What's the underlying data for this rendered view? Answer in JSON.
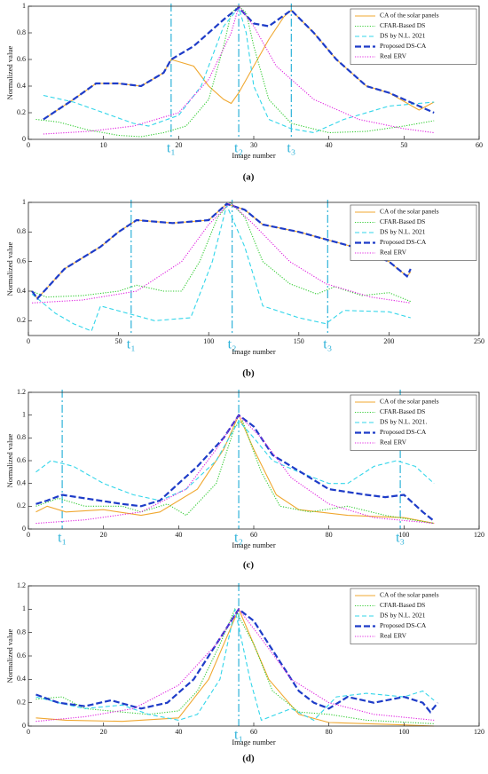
{
  "chart_data": [
    {
      "type": "line",
      "caption": "(a)",
      "xlabel": "Image number",
      "ylabel": "Normalized value",
      "xlim": [
        0,
        60
      ],
      "xticks": [
        0,
        10,
        20,
        30,
        40,
        50,
        60
      ],
      "ylim": [
        0,
        1
      ],
      "yticks": [
        0,
        0.2,
        0.4,
        0.6,
        0.8,
        1
      ],
      "vlines": [
        {
          "x": 19,
          "label": "t₁"
        },
        {
          "x": 28,
          "label": "t₂"
        },
        {
          "x": 35,
          "label": "t₃"
        }
      ],
      "series": [
        {
          "name": "CA of the solar panels",
          "color": "#f0a830",
          "dash": "solid",
          "x": [
            2,
            6,
            9,
            12,
            15,
            18,
            19,
            22,
            24,
            26,
            27,
            28,
            30,
            32,
            34,
            35,
            38,
            41,
            45,
            48,
            52,
            54
          ],
          "values": [
            0.15,
            0.3,
            0.42,
            0.42,
            0.4,
            0.5,
            0.6,
            0.55,
            0.4,
            0.3,
            0.27,
            0.35,
            0.55,
            0.75,
            0.92,
            0.97,
            0.8,
            0.6,
            0.4,
            0.35,
            0.22,
            0.28
          ]
        },
        {
          "name": "CFAR-Based DS",
          "color": "#33cc33",
          "dash": "dot",
          "x": [
            1,
            4,
            8,
            12,
            15,
            18,
            21,
            24,
            26,
            27,
            28,
            29,
            30,
            32,
            35,
            40,
            45,
            50,
            54
          ],
          "values": [
            0.15,
            0.13,
            0.07,
            0.03,
            0.02,
            0.05,
            0.1,
            0.3,
            0.7,
            0.95,
            1,
            0.95,
            0.7,
            0.3,
            0.12,
            0.05,
            0.06,
            0.1,
            0.14
          ]
        },
        {
          "name": "DS by N.L. 2021",
          "color": "#33d6ea",
          "dash": "dash",
          "x": [
            2,
            6,
            10,
            14,
            16,
            20,
            23,
            26,
            28,
            29,
            30,
            32,
            35,
            38,
            42,
            48,
            54
          ],
          "values": [
            0.33,
            0.28,
            0.2,
            0.12,
            0.1,
            0.18,
            0.4,
            0.85,
            0.99,
            0.8,
            0.4,
            0.15,
            0.08,
            0.05,
            0.15,
            0.25,
            0.28
          ]
        },
        {
          "name": "Proposed DS-CA",
          "color": "#1e3cc8",
          "dash": "bold",
          "x": [
            2,
            6,
            9,
            12,
            15,
            18,
            19,
            22,
            26,
            28,
            30,
            32,
            35,
            38,
            41,
            45,
            48,
            52,
            54
          ],
          "values": [
            0.15,
            0.3,
            0.42,
            0.42,
            0.4,
            0.5,
            0.6,
            0.7,
            0.9,
            0.99,
            0.87,
            0.85,
            0.97,
            0.8,
            0.6,
            0.4,
            0.35,
            0.25,
            0.2
          ]
        },
        {
          "name": "Real ERV",
          "color": "#e020e0",
          "dash": "dot",
          "x": [
            2,
            8,
            14,
            20,
            24,
            27,
            28,
            30,
            33,
            38,
            44,
            50,
            54
          ],
          "values": [
            0.04,
            0.06,
            0.1,
            0.2,
            0.45,
            0.8,
            1,
            0.85,
            0.55,
            0.3,
            0.15,
            0.08,
            0.05
          ]
        }
      ]
    },
    {
      "type": "line",
      "caption": "(b)",
      "xlabel": "Image number",
      "ylabel": "Normalized value",
      "xlim": [
        0,
        250
      ],
      "xticks": [
        0,
        50,
        100,
        150,
        200,
        250
      ],
      "ylim": [
        0.1,
        1
      ],
      "yticks": [
        0.2,
        0.4,
        0.6,
        0.8,
        1
      ],
      "vlines": [
        {
          "x": 57,
          "label": "t₁"
        },
        {
          "x": 113,
          "label": "t₂"
        },
        {
          "x": 166,
          "label": "t₃"
        }
      ],
      "series": [
        {
          "name": "CA of the solar panels",
          "color": "#f0a830",
          "dash": "solid",
          "x": [
            2,
            5,
            20,
            40,
            50,
            60,
            80,
            100,
            110,
            120,
            130,
            150,
            165,
            180,
            200,
            210,
            212
          ],
          "values": [
            0.4,
            0.35,
            0.55,
            0.7,
            0.8,
            0.88,
            0.86,
            0.88,
            0.99,
            0.95,
            0.85,
            0.8,
            0.75,
            0.7,
            0.6,
            0.5,
            0.53
          ]
        },
        {
          "name": "CFAR-Based DS",
          "color": "#33cc33",
          "dash": "dot",
          "x": [
            2,
            10,
            30,
            50,
            60,
            75,
            85,
            95,
            105,
            112,
            120,
            130,
            145,
            160,
            170,
            185,
            200,
            212
          ],
          "values": [
            0.4,
            0.36,
            0.37,
            0.4,
            0.44,
            0.4,
            0.4,
            0.6,
            0.9,
            1,
            0.9,
            0.6,
            0.45,
            0.38,
            0.43,
            0.37,
            0.39,
            0.33
          ]
        },
        {
          "name": "DS by N.L. 2021",
          "color": "#33d6ea",
          "dash": "dash",
          "x": [
            2,
            15,
            25,
            35,
            40,
            55,
            70,
            90,
            102,
            110,
            120,
            130,
            150,
            165,
            175,
            200,
            212
          ],
          "values": [
            0.38,
            0.25,
            0.18,
            0.13,
            0.3,
            0.25,
            0.2,
            0.22,
            0.6,
            0.98,
            0.7,
            0.3,
            0.22,
            0.18,
            0.27,
            0.26,
            0.22
          ]
        },
        {
          "name": "Proposed DS-CA",
          "color": "#1e3cc8",
          "dash": "bold",
          "x": [
            2,
            5,
            20,
            40,
            50,
            60,
            80,
            100,
            110,
            120,
            130,
            150,
            165,
            180,
            200,
            210,
            212
          ],
          "values": [
            0.4,
            0.35,
            0.55,
            0.7,
            0.8,
            0.88,
            0.86,
            0.88,
            0.99,
            0.95,
            0.85,
            0.8,
            0.75,
            0.7,
            0.6,
            0.5,
            0.55
          ]
        },
        {
          "name": "Real ERV",
          "color": "#e020e0",
          "dash": "dot",
          "x": [
            2,
            30,
            60,
            85,
            100,
            112,
            125,
            145,
            165,
            190,
            212
          ],
          "values": [
            0.32,
            0.34,
            0.4,
            0.6,
            0.85,
            1,
            0.85,
            0.6,
            0.45,
            0.36,
            0.32
          ]
        }
      ]
    },
    {
      "type": "line",
      "caption": "(c)",
      "xlabel": "Image number",
      "ylabel": "Normalized value",
      "xlim": [
        0,
        120
      ],
      "xticks": [
        0,
        20,
        40,
        60,
        80,
        100,
        120
      ],
      "ylim": [
        0,
        1.2
      ],
      "yticks": [
        0,
        0.2,
        0.4,
        0.6,
        0.8,
        1,
        1.2
      ],
      "vlines": [
        {
          "x": 9,
          "label": "t₁"
        },
        {
          "x": 56,
          "label": "t₂"
        },
        {
          "x": 99,
          "label": "t₃"
        }
      ],
      "series": [
        {
          "name": "CA of the solar panels",
          "color": "#f0a830",
          "dash": "solid",
          "x": [
            2,
            5,
            10,
            20,
            30,
            35,
            45,
            52,
            56,
            60,
            66,
            72,
            85,
            100,
            108
          ],
          "values": [
            0.15,
            0.2,
            0.15,
            0.17,
            0.12,
            0.15,
            0.35,
            0.7,
            1,
            0.7,
            0.3,
            0.17,
            0.12,
            0.1,
            0.05
          ]
        },
        {
          "name": "CFAR-Based DS",
          "color": "#33cc33",
          "dash": "dot",
          "x": [
            2,
            8,
            15,
            25,
            30,
            37,
            42,
            50,
            55,
            57,
            62,
            67,
            75,
            85,
            95,
            108
          ],
          "values": [
            0.2,
            0.27,
            0.2,
            0.2,
            0.15,
            0.22,
            0.12,
            0.4,
            0.9,
            0.95,
            0.5,
            0.2,
            0.15,
            0.2,
            0.12,
            0.05
          ]
        },
        {
          "name": "DS by N.L. 2021.",
          "color": "#33d6ea",
          "dash": "dash",
          "x": [
            2,
            6,
            12,
            20,
            28,
            35,
            42,
            50,
            56,
            60,
            65,
            72,
            80,
            85,
            92,
            98,
            103,
            108
          ],
          "values": [
            0.5,
            0.6,
            0.55,
            0.4,
            0.3,
            0.25,
            0.35,
            0.6,
            0.95,
            0.8,
            0.6,
            0.5,
            0.4,
            0.4,
            0.55,
            0.6,
            0.55,
            0.4
          ]
        },
        {
          "name": "Proposed DS-CA",
          "color": "#1e3cc8",
          "dash": "bold",
          "x": [
            2,
            5,
            9,
            15,
            25,
            30,
            35,
            40,
            45,
            52,
            56,
            60,
            65,
            70,
            75,
            80,
            90,
            95,
            100,
            105,
            108
          ],
          "values": [
            0.22,
            0.25,
            0.3,
            0.27,
            0.22,
            0.2,
            0.25,
            0.4,
            0.55,
            0.8,
            1,
            0.9,
            0.65,
            0.55,
            0.45,
            0.35,
            0.3,
            0.28,
            0.3,
            0.15,
            0.07
          ]
        },
        {
          "name": "Real ERV",
          "color": "#e020e0",
          "dash": "dot",
          "x": [
            2,
            15,
            30,
            42,
            50,
            56,
            62,
            70,
            80,
            92,
            108
          ],
          "values": [
            0.05,
            0.08,
            0.15,
            0.35,
            0.7,
            1,
            0.8,
            0.45,
            0.22,
            0.1,
            0.05
          ]
        }
      ]
    },
    {
      "type": "line",
      "caption": "(d)",
      "xlabel": "Image number",
      "ylabel": "Normalized value",
      "xlim": [
        0,
        120
      ],
      "xticks": [
        0,
        20,
        40,
        60,
        80,
        100,
        120
      ],
      "ylim": [
        0,
        1.2
      ],
      "yticks": [
        0,
        0.2,
        0.4,
        0.6,
        0.8,
        1,
        1.2
      ],
      "vlines": [
        {
          "x": 56,
          "label": "t₁"
        }
      ],
      "series": [
        {
          "name": "CA of the solar panels",
          "color": "#f0a830",
          "dash": "solid",
          "x": [
            2,
            10,
            25,
            40,
            48,
            56,
            64,
            72,
            80,
            100,
            108
          ],
          "values": [
            0.07,
            0.05,
            0.04,
            0.07,
            0.4,
            1,
            0.4,
            0.1,
            0.03,
            0.01,
            0
          ]
        },
        {
          "name": "CFAR-Based DS",
          "color": "#33cc33",
          "dash": "dot",
          "x": [
            2,
            9,
            15,
            25,
            32,
            40,
            45,
            51,
            55,
            60,
            65,
            72,
            80,
            90,
            108
          ],
          "values": [
            0.23,
            0.25,
            0.15,
            0.12,
            0.1,
            0.13,
            0.3,
            0.7,
            1,
            0.7,
            0.3,
            0.12,
            0.1,
            0.05,
            0.02
          ]
        },
        {
          "name": "DS by N.L. 2021",
          "color": "#33d6ea",
          "dash": "dash",
          "x": [
            2,
            8,
            15,
            25,
            32,
            40,
            45,
            51,
            55,
            59,
            62,
            70,
            76,
            82,
            90,
            100,
            105,
            108
          ],
          "values": [
            0.25,
            0.2,
            0.15,
            0.18,
            0.1,
            0.05,
            0.1,
            0.4,
            1,
            0.4,
            0.05,
            0.15,
            0.05,
            0.25,
            0.28,
            0.25,
            0.3,
            0.22
          ]
        },
        {
          "name": "Proposed DS-CA",
          "color": "#1e3cc8",
          "dash": "bold",
          "x": [
            2,
            8,
            15,
            22,
            30,
            37,
            44,
            50,
            56,
            60,
            66,
            72,
            76,
            80,
            85,
            92,
            100,
            105,
            107,
            109
          ],
          "values": [
            0.27,
            0.2,
            0.17,
            0.22,
            0.15,
            0.2,
            0.4,
            0.7,
            1,
            0.9,
            0.6,
            0.3,
            0.2,
            0.15,
            0.25,
            0.2,
            0.25,
            0.2,
            0.12,
            0.2
          ]
        },
        {
          "name": "Real ERV",
          "color": "#e020e0",
          "dash": "dot",
          "x": [
            2,
            15,
            28,
            40,
            50,
            56,
            62,
            70,
            80,
            92,
            108
          ],
          "values": [
            0.04,
            0.08,
            0.15,
            0.35,
            0.7,
            1,
            0.75,
            0.4,
            0.2,
            0.1,
            0.05
          ]
        }
      ]
    }
  ]
}
